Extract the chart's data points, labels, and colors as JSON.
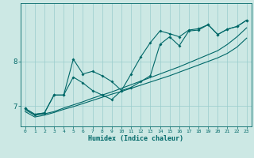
{
  "xlabel": "Humidex (Indice chaleur)",
  "bg_color": "#cce8e4",
  "line_color": "#006868",
  "grid_color": "#99cccc",
  "xmin": -0.5,
  "xmax": 23.5,
  "ymin": 6.55,
  "ymax": 9.3,
  "yticks": [
    7,
    8
  ],
  "xticks": [
    0,
    1,
    2,
    3,
    4,
    5,
    6,
    7,
    8,
    9,
    10,
    11,
    12,
    13,
    14,
    15,
    16,
    17,
    18,
    19,
    20,
    21,
    22,
    23
  ],
  "line1_x": [
    0,
    1,
    2,
    3,
    4,
    5,
    6,
    7,
    8,
    9,
    10,
    11,
    12,
    13,
    14,
    15,
    16,
    17,
    18,
    19,
    20,
    21,
    22,
    23
  ],
  "line1_y": [
    6.95,
    6.82,
    6.85,
    7.25,
    7.25,
    8.05,
    7.72,
    7.78,
    7.68,
    7.55,
    7.35,
    7.72,
    8.1,
    8.42,
    8.68,
    8.62,
    8.55,
    8.7,
    8.73,
    8.82,
    8.6,
    8.72,
    8.78,
    8.92
  ],
  "line2_x": [
    0,
    1,
    2,
    3,
    4,
    5,
    6,
    7,
    8,
    9,
    10,
    11,
    12,
    13,
    14,
    15,
    16,
    17,
    18,
    19,
    20,
    21,
    22,
    23
  ],
  "line2_y": [
    6.95,
    6.82,
    6.85,
    7.25,
    7.25,
    7.65,
    7.52,
    7.35,
    7.25,
    7.15,
    7.35,
    7.42,
    7.55,
    7.68,
    8.38,
    8.55,
    8.35,
    8.68,
    8.7,
    8.82,
    8.6,
    8.72,
    8.78,
    8.92
  ],
  "line3_x": [
    0,
    1,
    2,
    3,
    4,
    5,
    6,
    7,
    8,
    9,
    10,
    11,
    12,
    13,
    14,
    15,
    16,
    17,
    18,
    19,
    20,
    21,
    22,
    23
  ],
  "line3_y": [
    6.92,
    6.8,
    6.83,
    6.88,
    6.96,
    7.03,
    7.1,
    7.18,
    7.25,
    7.32,
    7.4,
    7.48,
    7.56,
    7.64,
    7.72,
    7.8,
    7.88,
    7.97,
    8.06,
    8.15,
    8.24,
    8.38,
    8.55,
    8.75
  ],
  "line4_x": [
    0,
    1,
    2,
    3,
    4,
    5,
    6,
    7,
    8,
    9,
    10,
    11,
    12,
    13,
    14,
    15,
    16,
    17,
    18,
    19,
    20,
    21,
    22,
    23
  ],
  "line4_y": [
    6.88,
    6.76,
    6.8,
    6.86,
    6.93,
    6.99,
    7.06,
    7.13,
    7.2,
    7.27,
    7.33,
    7.4,
    7.47,
    7.54,
    7.61,
    7.68,
    7.76,
    7.84,
    7.92,
    8.0,
    8.08,
    8.18,
    8.32,
    8.52
  ]
}
